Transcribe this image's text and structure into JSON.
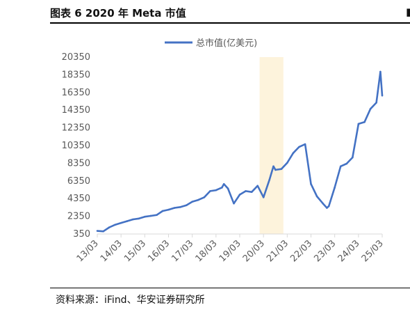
{
  "figure": {
    "title": "图表 6 2020 年 Meta 市值",
    "corner_mark": "▮",
    "source": "资料来源：iFind、华安证券研究所"
  },
  "colors": {
    "line": "#4472c4",
    "highlight_band": "#fdf3dc",
    "axis": "#d9d9d9",
    "text": "#595959"
  },
  "chart_data": {
    "type": "line",
    "title": "",
    "xlabel": "",
    "ylabel": "",
    "legend": "top-center",
    "grid": false,
    "ylim": [
      350,
      20350
    ],
    "yticks": [
      "350",
      "2350",
      "4350",
      "6350",
      "8350",
      "10350",
      "12350",
      "14350",
      "16350",
      "18350",
      "20350"
    ],
    "xticks": [
      "13/03",
      "14/03",
      "15/03",
      "16/03",
      "17/03",
      "18/03",
      "19/03",
      "20/03",
      "21/03",
      "22/03",
      "23/03",
      "24/03",
      "25/03"
    ],
    "highlight_period": [
      "2020-01",
      "2021-01"
    ],
    "series": [
      {
        "name": "总市值(亿美元)",
        "x": [
          "2013-03",
          "2013-06",
          "2013-09",
          "2013-12",
          "2014-03",
          "2014-06",
          "2014-09",
          "2014-12",
          "2015-03",
          "2015-06",
          "2015-09",
          "2015-12",
          "2016-03",
          "2016-06",
          "2016-09",
          "2016-12",
          "2017-03",
          "2017-06",
          "2017-09",
          "2017-12",
          "2018-03",
          "2018-06",
          "2018-07",
          "2018-09",
          "2018-12",
          "2019-03",
          "2019-06",
          "2019-09",
          "2019-12",
          "2020-03",
          "2020-06",
          "2020-08",
          "2020-09",
          "2020-12",
          "2021-03",
          "2021-06",
          "2021-09",
          "2021-12",
          "2022-03",
          "2022-06",
          "2022-09",
          "2022-11",
          "2022-12",
          "2023-03",
          "2023-06",
          "2023-09",
          "2023-12",
          "2024-03",
          "2024-06",
          "2024-09",
          "2024-12",
          "2025-02",
          "2025-03"
        ],
        "values": [
          700,
          650,
          1100,
          1400,
          1600,
          1800,
          2000,
          2100,
          2300,
          2400,
          2500,
          2950,
          3100,
          3300,
          3400,
          3600,
          4000,
          4200,
          4500,
          5200,
          5300,
          5600,
          6000,
          5500,
          3800,
          4800,
          5200,
          5100,
          5800,
          4500,
          6500,
          8000,
          7600,
          7700,
          8400,
          9500,
          10200,
          10500,
          6000,
          4600,
          3800,
          3300,
          3500,
          5600,
          8000,
          8300,
          9000,
          12800,
          13000,
          14500,
          15200,
          18700,
          16000
        ]
      }
    ]
  }
}
